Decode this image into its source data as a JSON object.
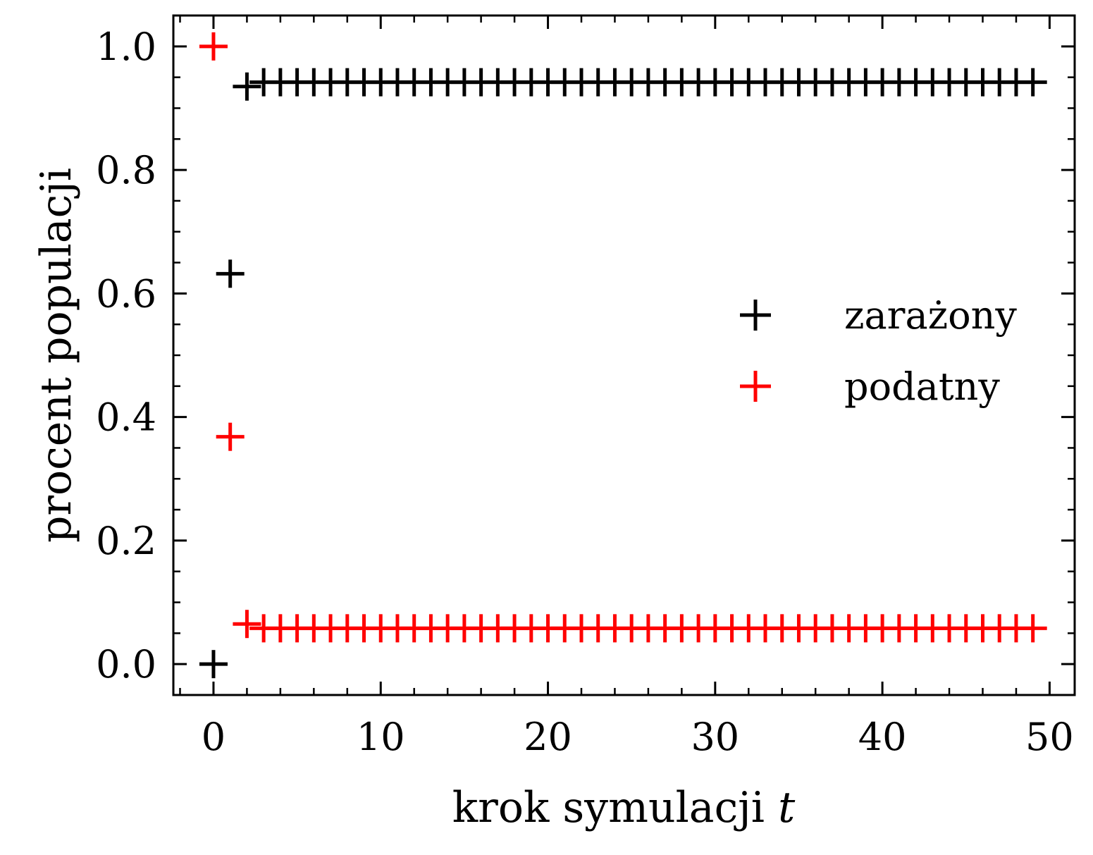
{
  "chart_data": {
    "type": "scatter",
    "title": "",
    "xlabel": "krok symulacji",
    "xlabel_var": "t",
    "ylabel": "procent populacji",
    "xlim": [
      -2.4,
      51.5
    ],
    "ylim": [
      -0.05,
      1.05
    ],
    "xticks": [
      0,
      10,
      20,
      30,
      40,
      50
    ],
    "xtick_labels": [
      "0",
      "10",
      "20",
      "30",
      "40",
      "50"
    ],
    "yticks": [
      0.0,
      0.2,
      0.4,
      0.6,
      0.8,
      1.0
    ],
    "ytick_labels": [
      "0.0",
      "0.2",
      "0.4",
      "0.6",
      "0.8",
      "1.0"
    ],
    "grid": false,
    "legend": "center-right",
    "marker": "+",
    "series": [
      {
        "name": "zarażony",
        "color": "#000000",
        "x": [
          0,
          1,
          2,
          3,
          4,
          5,
          6,
          7,
          8,
          9,
          10,
          11,
          12,
          13,
          14,
          15,
          16,
          17,
          18,
          19,
          20,
          21,
          22,
          23,
          24,
          25,
          26,
          27,
          28,
          29,
          30,
          31,
          32,
          33,
          34,
          35,
          36,
          37,
          38,
          39,
          40,
          41,
          42,
          43,
          44,
          45,
          46,
          47,
          48,
          49
        ],
        "y": [
          0.0,
          0.632,
          0.935,
          0.942,
          0.942,
          0.942,
          0.942,
          0.942,
          0.942,
          0.942,
          0.942,
          0.942,
          0.942,
          0.942,
          0.942,
          0.942,
          0.942,
          0.942,
          0.942,
          0.942,
          0.942,
          0.942,
          0.942,
          0.942,
          0.942,
          0.942,
          0.942,
          0.942,
          0.942,
          0.942,
          0.942,
          0.942,
          0.942,
          0.942,
          0.942,
          0.942,
          0.942,
          0.942,
          0.942,
          0.942,
          0.942,
          0.942,
          0.942,
          0.942,
          0.942,
          0.942,
          0.942,
          0.942,
          0.942,
          0.942
        ]
      },
      {
        "name": "podatny",
        "color": "#ff0000",
        "x": [
          0,
          1,
          2,
          3,
          4,
          5,
          6,
          7,
          8,
          9,
          10,
          11,
          12,
          13,
          14,
          15,
          16,
          17,
          18,
          19,
          20,
          21,
          22,
          23,
          24,
          25,
          26,
          27,
          28,
          29,
          30,
          31,
          32,
          33,
          34,
          35,
          36,
          37,
          38,
          39,
          40,
          41,
          42,
          43,
          44,
          45,
          46,
          47,
          48,
          49
        ],
        "y": [
          1.0,
          0.368,
          0.065,
          0.058,
          0.058,
          0.058,
          0.058,
          0.058,
          0.058,
          0.058,
          0.058,
          0.058,
          0.058,
          0.058,
          0.058,
          0.058,
          0.058,
          0.058,
          0.058,
          0.058,
          0.058,
          0.058,
          0.058,
          0.058,
          0.058,
          0.058,
          0.058,
          0.058,
          0.058,
          0.058,
          0.058,
          0.058,
          0.058,
          0.058,
          0.058,
          0.058,
          0.058,
          0.058,
          0.058,
          0.058,
          0.058,
          0.058,
          0.058,
          0.058,
          0.058,
          0.058,
          0.058,
          0.058,
          0.058,
          0.058
        ]
      }
    ]
  }
}
